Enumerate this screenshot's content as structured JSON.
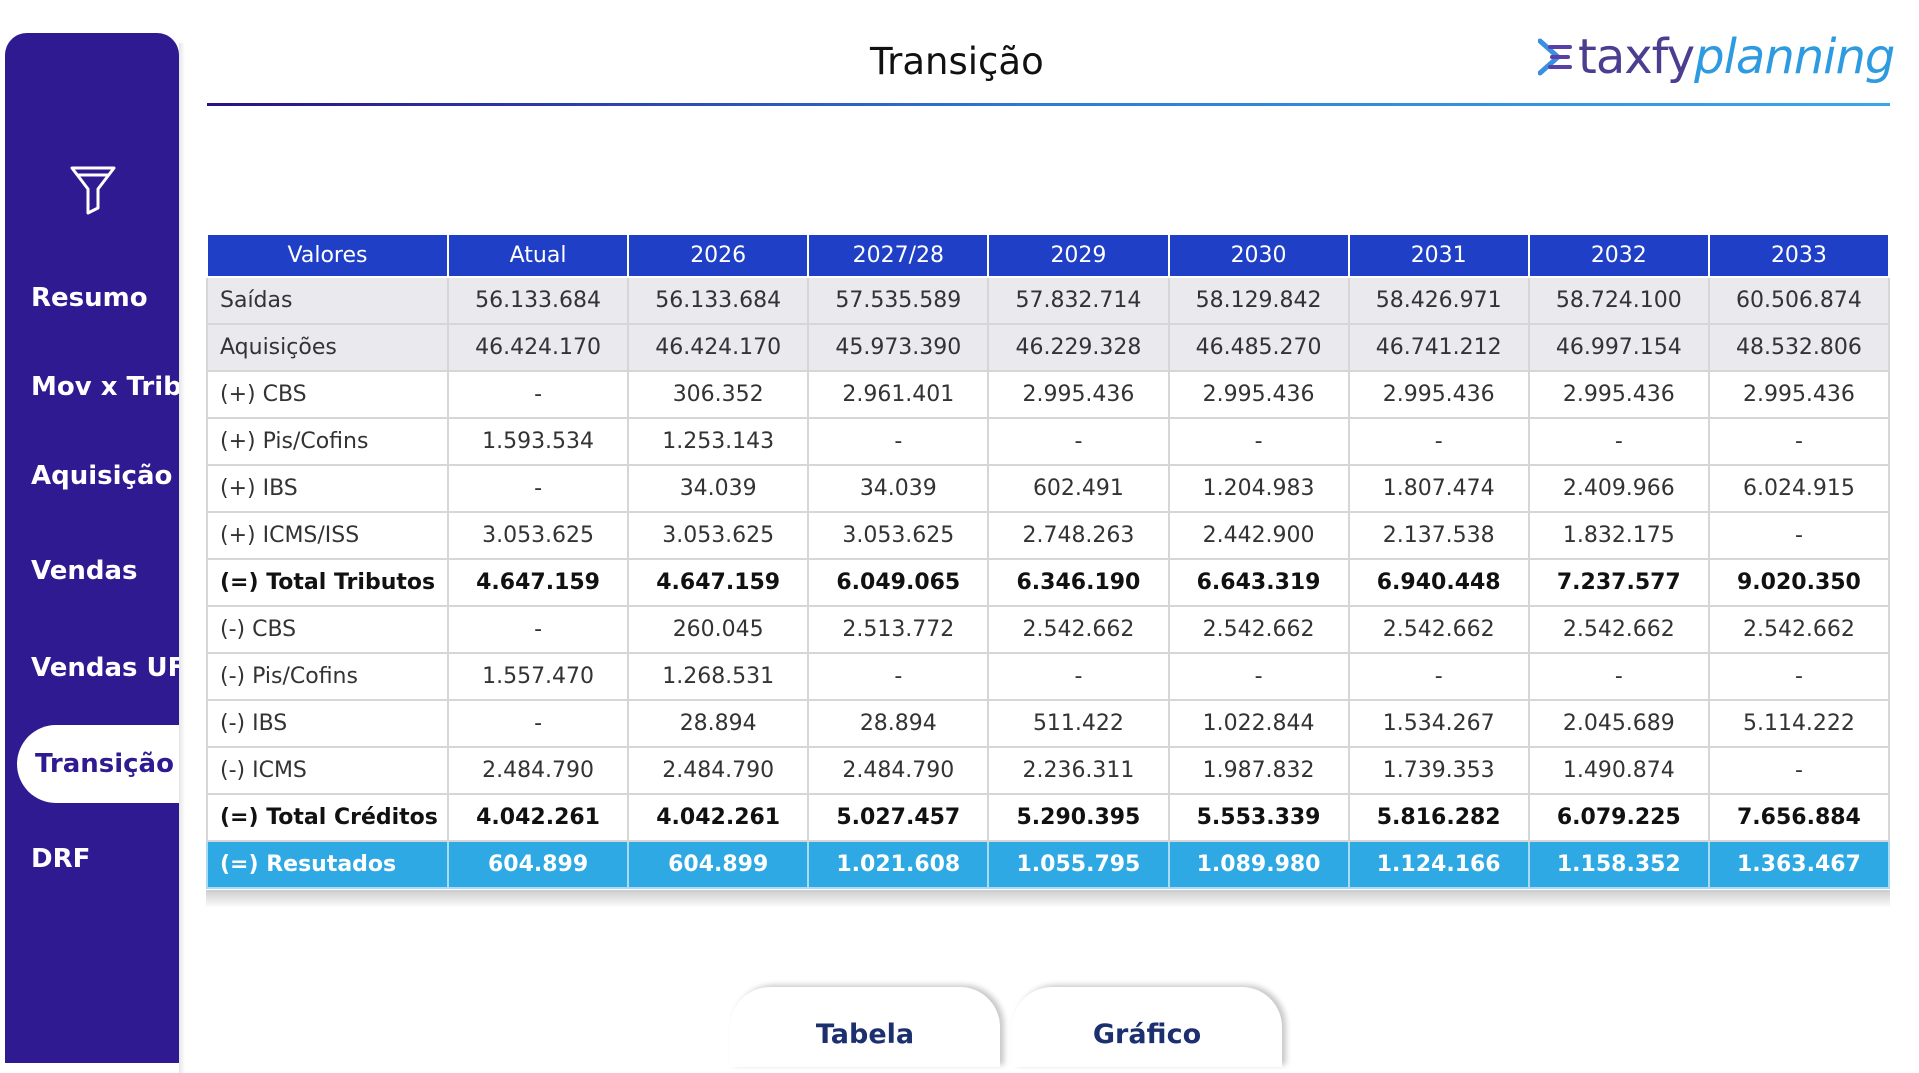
{
  "colors": {
    "sidebar": "#2f1a91",
    "header": "#1f3fc6",
    "result": "#2ea9e3"
  },
  "sidebar": {
    "filter_icon": "filter-icon",
    "items": [
      {
        "label": "Resumo"
      },
      {
        "label": "Mov x Trib"
      },
      {
        "label": "Aquisição"
      },
      {
        "label": "Vendas"
      },
      {
        "label": "Vendas UF"
      },
      {
        "label": "Transição"
      },
      {
        "label": "DRF"
      }
    ]
  },
  "header": {
    "title": "Transição",
    "logo_part1": "taxfy",
    "logo_part2": "planning"
  },
  "table": {
    "columns": [
      "Valores",
      "Atual",
      "2026",
      "2027/28",
      "2029",
      "2030",
      "2031",
      "2032",
      "2033"
    ],
    "rows": [
      {
        "label": "Saídas",
        "values": [
          "56.133.684",
          "56.133.684",
          "57.535.589",
          "57.832.714",
          "58.129.842",
          "58.426.971",
          "58.724.100",
          "60.506.874"
        ]
      },
      {
        "label": "Aquisições",
        "values": [
          "46.424.170",
          "46.424.170",
          "45.973.390",
          "46.229.328",
          "46.485.270",
          "46.741.212",
          "46.997.154",
          "48.532.806"
        ]
      },
      {
        "label": "(+) CBS",
        "values": [
          "-",
          "306.352",
          "2.961.401",
          "2.995.436",
          "2.995.436",
          "2.995.436",
          "2.995.436",
          "2.995.436"
        ]
      },
      {
        "label": "(+) Pis/Cofins",
        "values": [
          "1.593.534",
          "1.253.143",
          "-",
          "-",
          "-",
          "-",
          "-",
          "-"
        ]
      },
      {
        "label": "(+) IBS",
        "values": [
          "-",
          "34.039",
          "34.039",
          "602.491",
          "1.204.983",
          "1.807.474",
          "2.409.966",
          "6.024.915"
        ]
      },
      {
        "label": "(+) ICMS/ISS",
        "values": [
          "3.053.625",
          "3.053.625",
          "3.053.625",
          "2.748.263",
          "2.442.900",
          "2.137.538",
          "1.832.175",
          "-"
        ]
      },
      {
        "label": "(=) Total Tributos",
        "values": [
          "4.647.159",
          "4.647.159",
          "6.049.065",
          "6.346.190",
          "6.643.319",
          "6.940.448",
          "7.237.577",
          "9.020.350"
        ]
      },
      {
        "label": "(-) CBS",
        "values": [
          "-",
          "260.045",
          "2.513.772",
          "2.542.662",
          "2.542.662",
          "2.542.662",
          "2.542.662",
          "2.542.662"
        ]
      },
      {
        "label": "(-) Pis/Cofins",
        "values": [
          "1.557.470",
          "1.268.531",
          "-",
          "-",
          "-",
          "-",
          "-",
          "-"
        ]
      },
      {
        "label": "(-) IBS",
        "values": [
          "-",
          "28.894",
          "28.894",
          "511.422",
          "1.022.844",
          "1.534.267",
          "2.045.689",
          "5.114.222"
        ]
      },
      {
        "label": "(-) ICMS",
        "values": [
          "2.484.790",
          "2.484.790",
          "2.484.790",
          "2.236.311",
          "1.987.832",
          "1.739.353",
          "1.490.874",
          "-"
        ]
      },
      {
        "label": "(=) Total Créditos",
        "values": [
          "4.042.261",
          "4.042.261",
          "5.027.457",
          "5.290.395",
          "5.553.339",
          "5.816.282",
          "6.079.225",
          "7.656.884"
        ]
      },
      {
        "label": "(=) Resutados",
        "values": [
          "604.899",
          "604.899",
          "1.021.608",
          "1.055.795",
          "1.089.980",
          "1.124.166",
          "1.158.352",
          "1.363.467"
        ]
      }
    ]
  },
  "tabs": [
    {
      "label": "Tabela"
    },
    {
      "label": "Gráfico"
    }
  ]
}
